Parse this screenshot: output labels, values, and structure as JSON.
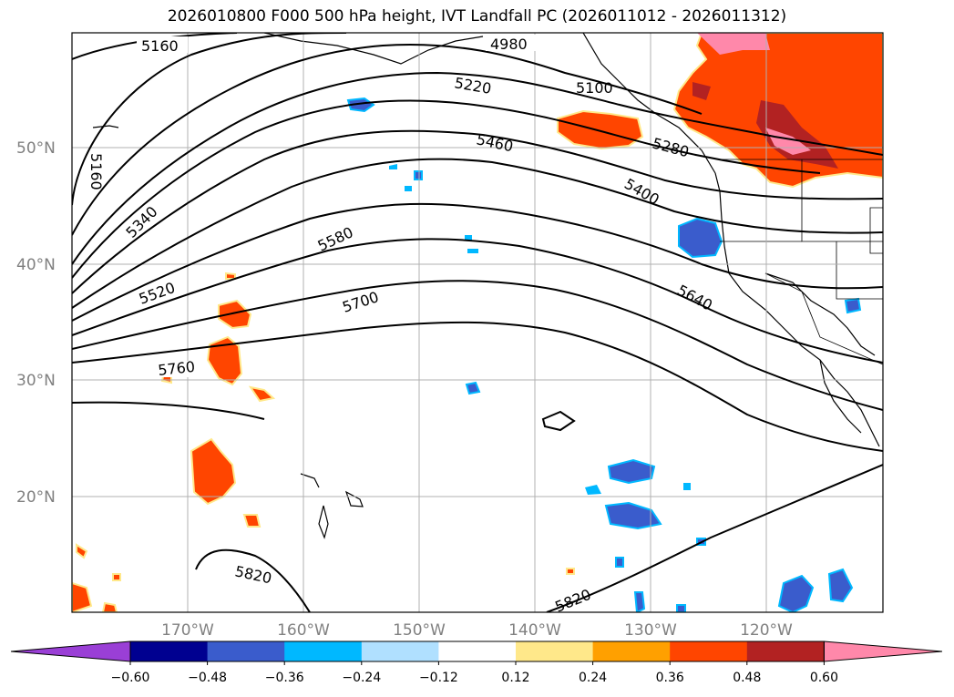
{
  "title": "2026010800 F000 500 hPa height, IVT Landfall PC (2026011012 - 2026011312)",
  "map": {
    "lat_labels": [
      "50°N",
      "40°N",
      "30°N",
      "20°N"
    ],
    "lon_labels": [
      "170°W",
      "160°W",
      "150°W",
      "140°W",
      "130°W",
      "120°W"
    ],
    "height_contour_labels": [
      {
        "text": "5160"
      },
      {
        "text": "4980"
      },
      {
        "text": "5220"
      },
      {
        "text": "5100"
      },
      {
        "text": "5460"
      },
      {
        "text": "5280"
      },
      {
        "text": "5160"
      },
      {
        "text": "5340"
      },
      {
        "text": "5400"
      },
      {
        "text": "5580"
      },
      {
        "text": "5520"
      },
      {
        "text": "5700"
      },
      {
        "text": "5640"
      },
      {
        "text": "5760"
      },
      {
        "text": "5820"
      },
      {
        "text": "5820"
      }
    ]
  },
  "colorbar": {
    "ticks": [
      "−0.60",
      "−0.48",
      "−0.36",
      "−0.24",
      "−0.12",
      "0.12",
      "0.24",
      "0.36",
      "0.48",
      "0.60"
    ],
    "colors": [
      "#9a3fd6",
      "#000090",
      "#3a5ccc",
      "#00b8ff",
      "#b0e0ff",
      "#ffffff",
      "#ffe88a",
      "#ffa000",
      "#ff4500",
      "#b22222",
      "#ff88aa"
    ]
  }
}
